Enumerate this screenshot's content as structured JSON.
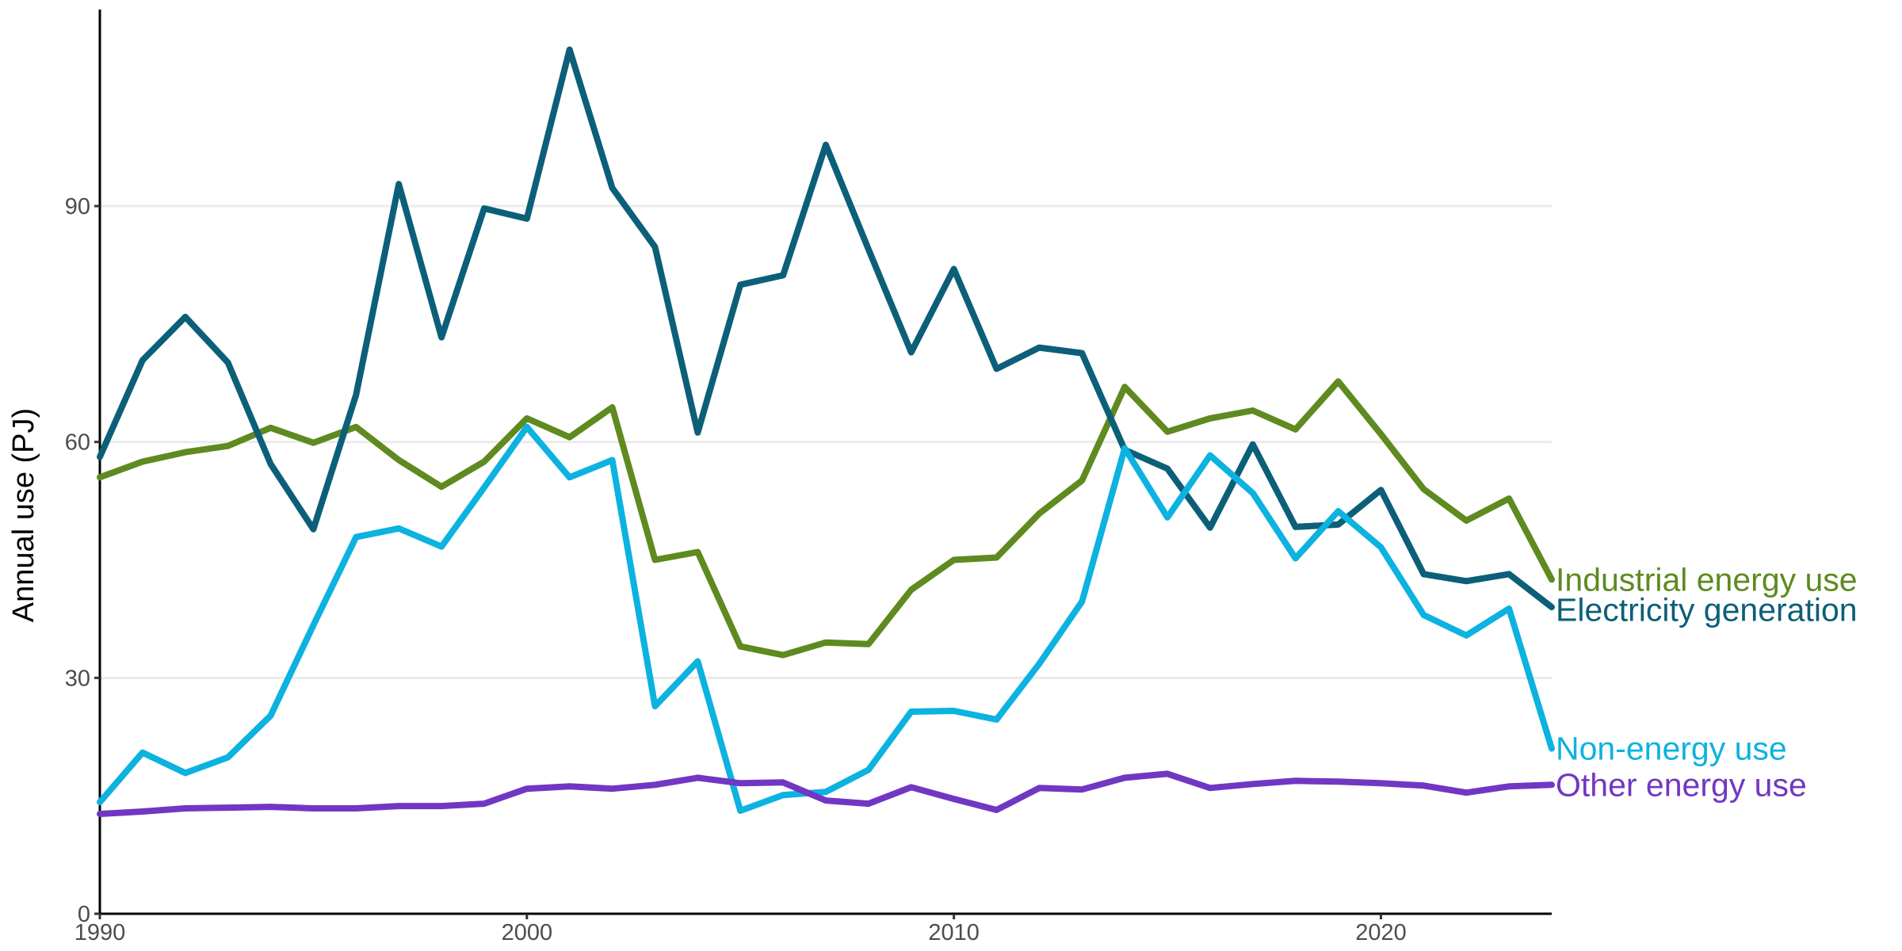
{
  "chart_data": {
    "type": "line",
    "title": "",
    "xlabel": "",
    "ylabel": "Annual use (PJ)",
    "xlim": [
      1990,
      2024
    ],
    "ylim": [
      0,
      115
    ],
    "x_ticks": [
      1990,
      2000,
      2010,
      2020
    ],
    "y_ticks": [
      0,
      30,
      60,
      90
    ],
    "grid": "horizontal major",
    "legend": "direct labels at right end of each line",
    "x": [
      1990,
      1991,
      1992,
      1993,
      1994,
      1995,
      1996,
      1997,
      1998,
      1999,
      2000,
      2001,
      2002,
      2003,
      2004,
      2005,
      2006,
      2007,
      2008,
      2009,
      2010,
      2011,
      2012,
      2013,
      2014,
      2015,
      2016,
      2017,
      2018,
      2019,
      2020,
      2021,
      2022,
      2023,
      2024
    ],
    "series": [
      {
        "name": "Industrial energy use",
        "color": "#5e8a1f",
        "values": [
          55.5,
          57.5,
          58.7,
          59.5,
          61.8,
          59.9,
          61.9,
          57.7,
          54.3,
          57.5,
          63.0,
          60.6,
          64.4,
          45.0,
          46.0,
          34.0,
          32.9,
          34.5,
          34.3,
          41.2,
          45.0,
          45.3,
          50.9,
          55.1,
          67.0,
          61.3,
          63.0,
          64.0,
          61.6,
          67.7,
          61.0,
          54.0,
          50.0,
          52.8,
          42.5
        ]
      },
      {
        "name": "Electricity generation",
        "color": "#0c5f78",
        "values": [
          58.1,
          70.4,
          75.9,
          70.1,
          57.2,
          48.9,
          66.0,
          92.8,
          73.3,
          89.7,
          88.4,
          109.9,
          92.3,
          84.8,
          61.2,
          80.0,
          81.2,
          97.8,
          84.5,
          71.4,
          82.0,
          69.3,
          72.0,
          71.3,
          59.0,
          56.6,
          49.1,
          59.7,
          49.2,
          49.5,
          53.9,
          43.2,
          42.3,
          43.2,
          39.0
        ]
      },
      {
        "name": "Non-energy use",
        "color": "#0cb2e0",
        "values": [
          14.2,
          20.5,
          17.9,
          19.9,
          25.2,
          36.7,
          47.9,
          49.0,
          46.7,
          54.2,
          61.9,
          55.5,
          57.7,
          26.4,
          32.1,
          13.1,
          15.1,
          15.5,
          18.3,
          25.7,
          25.8,
          24.7,
          31.8,
          39.7,
          59.2,
          50.4,
          58.3,
          53.5,
          45.2,
          51.2,
          46.6,
          38.0,
          35.4,
          38.8,
          21.0
        ]
      },
      {
        "name": "Other energy use",
        "color": "#7137c3",
        "values": [
          12.7,
          13.0,
          13.4,
          13.5,
          13.6,
          13.4,
          13.4,
          13.7,
          13.7,
          14.0,
          15.9,
          16.2,
          15.9,
          16.4,
          17.3,
          16.6,
          16.7,
          14.4,
          14.0,
          16.1,
          14.6,
          13.2,
          16.0,
          15.8,
          17.3,
          17.8,
          16.0,
          16.5,
          16.9,
          16.8,
          16.6,
          16.3,
          15.4,
          16.2,
          16.4
        ]
      }
    ]
  }
}
